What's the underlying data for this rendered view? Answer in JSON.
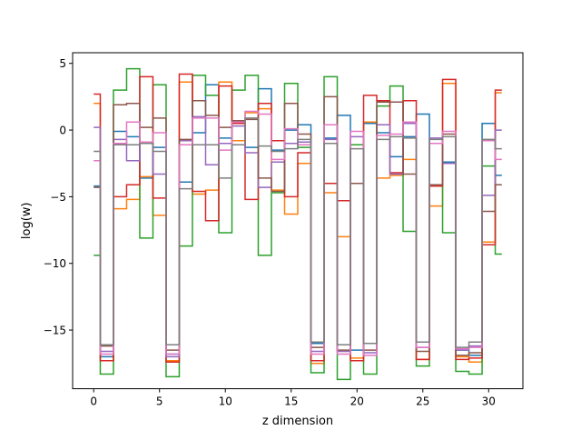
{
  "chart_data": {
    "type": "line",
    "drawstyle": "steps-mid",
    "title": "",
    "xlabel": "z dimension",
    "ylabel": "log(w)",
    "xlim": [
      -1.6,
      32.6
    ],
    "ylim": [
      -19.4,
      5.8
    ],
    "xticks": [
      0,
      5,
      10,
      15,
      20,
      25,
      30
    ],
    "xtick_labels": [
      "0",
      "5",
      "10",
      "15",
      "20",
      "25",
      "30"
    ],
    "yticks": [
      5,
      0,
      -5,
      -10,
      -15
    ],
    "ytick_labels": [
      "5",
      "0",
      "−5",
      "−10",
      "−15"
    ],
    "grid": false,
    "legend": "none",
    "x": [
      0,
      1,
      2,
      3,
      4,
      5,
      6,
      7,
      8,
      9,
      10,
      11,
      12,
      13,
      14,
      15,
      16,
      17,
      18,
      19,
      20,
      21,
      22,
      23,
      24,
      25,
      26,
      27,
      28,
      29,
      30,
      31
    ],
    "series": [
      {
        "color": "#1f77b4",
        "values": [
          -4.2,
          -17.0,
          -0.1,
          -0.5,
          -3.6,
          -1.3,
          -16.8,
          -3.9,
          -0.2,
          3.4,
          -0.6,
          0.7,
          -1.3,
          3.1,
          -1.5,
          0.0,
          0.4,
          -16.0,
          -0.6,
          1.1,
          -16.5,
          0.5,
          -0.2,
          -2.0,
          -0.5,
          1.2,
          -4.1,
          -2.4,
          -16.5,
          -16.9,
          0.5,
          -3.4
        ]
      },
      {
        "color": "#ff7f0e",
        "values": [
          2.0,
          -17.3,
          -5.9,
          -5.2,
          -3.5,
          -6.4,
          -17.3,
          3.6,
          -4.8,
          -4.5,
          3.6,
          -0.8,
          1.3,
          1.6,
          -4.5,
          -6.3,
          -2.5,
          -17.5,
          -4.7,
          -8.0,
          -17.1,
          0.6,
          -3.6,
          -3.4,
          -2.2,
          -17.2,
          -5.7,
          3.5,
          -17.0,
          -17.4,
          -8.4,
          2.8
        ]
      },
      {
        "color": "#2ca02c",
        "values": [
          -9.4,
          -18.3,
          3.0,
          4.6,
          -8.1,
          3.4,
          -18.5,
          -8.7,
          4.1,
          2.6,
          -7.7,
          3.0,
          4.1,
          -9.4,
          -4.7,
          3.5,
          -1.3,
          -18.2,
          4.0,
          -18.7,
          -1.1,
          -18.3,
          1.8,
          3.3,
          -7.6,
          -17.7,
          -4.2,
          -7.7,
          -18.1,
          -18.3,
          -2.7,
          -9.3
        ]
      },
      {
        "color": "#d62728",
        "values": [
          2.7,
          -17.3,
          -5.0,
          -4.1,
          4.0,
          -5.1,
          -17.4,
          4.2,
          -4.6,
          -6.8,
          3.3,
          0.5,
          -5.2,
          2.0,
          -0.8,
          -5.0,
          -1.7,
          -17.3,
          -4.0,
          -5.3,
          -17.3,
          2.6,
          2.2,
          -3.2,
          2.2,
          -17.2,
          -4.2,
          3.8,
          -17.2,
          -17.1,
          -8.6,
          3.0
        ]
      },
      {
        "color": "#9467bd",
        "values": [
          0.2,
          -16.6,
          -0.7,
          -2.3,
          -1.0,
          -3.3,
          -17.0,
          -0.8,
          1.0,
          -2.6,
          -1.0,
          0.3,
          -1.7,
          -4.3,
          -2.4,
          -1.0,
          -0.9,
          -16.6,
          -0.7,
          -16.6,
          -0.5,
          -16.7,
          0.4,
          -3.3,
          0.5,
          -16.3,
          -0.6,
          -2.5,
          -16.5,
          -16.2,
          -4.9,
          0.0
        ]
      },
      {
        "color": "#8c564b",
        "values": [
          -4.3,
          -16.2,
          1.9,
          2.0,
          0.2,
          0.9,
          -16.5,
          -0.7,
          2.2,
          1.1,
          0.2,
          0.7,
          0.8,
          -3.6,
          -4.6,
          2.0,
          -0.3,
          -16.3,
          2.5,
          -16.5,
          -4.0,
          -16.5,
          2.1,
          2.1,
          -3.3,
          -16.6,
          -4.1,
          -0.3,
          -16.9,
          -16.7,
          -6.1,
          -4.1
        ]
      },
      {
        "color": "#e377c2",
        "values": [
          -2.3,
          -16.8,
          -1.0,
          0.6,
          -0.9,
          -0.2,
          -16.8,
          -1.1,
          0.9,
          0.9,
          -1.5,
          0.6,
          1.4,
          1.2,
          -2.2,
          0.1,
          -1.1,
          -16.8,
          0.4,
          -16.8,
          -0.1,
          -16.9,
          -0.4,
          -0.3,
          0.6,
          -16.3,
          -1.0,
          -0.1,
          -16.4,
          -16.3,
          -0.8,
          -2.2
        ]
      },
      {
        "color": "#7f7f7f",
        "values": [
          -1.6,
          -16.1,
          -1.1,
          -1.1,
          -1.0,
          -1.6,
          -16.1,
          -4.4,
          -1.1,
          -1.1,
          -3.6,
          -1.1,
          0.9,
          -1.2,
          -1.6,
          -1.4,
          -0.7,
          -15.9,
          -1.0,
          -16.1,
          -1.4,
          -16.0,
          -0.7,
          -0.5,
          -0.6,
          -15.9,
          -0.7,
          -0.5,
          -16.3,
          -15.9,
          -0.7,
          -1.4
        ]
      }
    ]
  }
}
